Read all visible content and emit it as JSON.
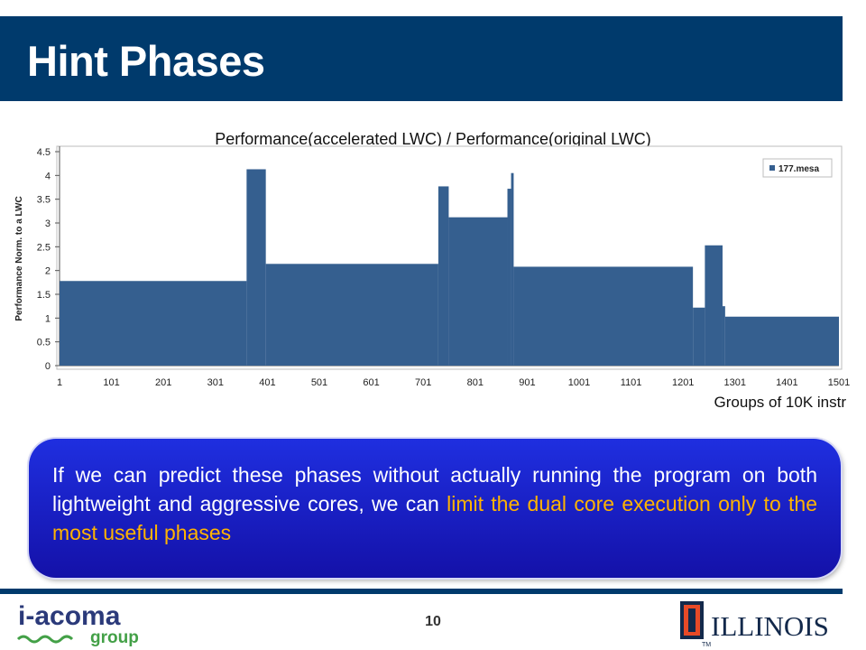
{
  "slide": {
    "title": "Hint Phases",
    "page_number": "10",
    "callout_text_plain": "If we can predict these phases without actually running the program on both lightweight and aggressive cores, we can",
    "callout_text_highlight": "limit the dual core execution only to the most useful phases",
    "logo_left": {
      "line1": "i-acoma",
      "line2": "group"
    },
    "logo_right": {
      "text": "ILLINOIS",
      "mark": "TM"
    }
  },
  "colors": {
    "title_bar": "#003a6c",
    "bars": "#355f8f",
    "callout": "#1a1fc8",
    "highlight": "#ffb300"
  },
  "chart_data": {
    "type": "bar",
    "title": "Performance(accelerated LWC) / Performance(original LWC)",
    "xlabel": "Groups of 10K instr",
    "ylabel": "Performance Norm. to a LWC",
    "ylim": [
      0,
      4.5
    ],
    "xlim": [
      1,
      1501
    ],
    "yticks": [
      "0",
      "0.5",
      "1",
      "1.5",
      "2",
      "2.5",
      "3",
      "3.5",
      "4",
      "4.5"
    ],
    "xticks": [
      "1",
      "101",
      "201",
      "301",
      "401",
      "501",
      "601",
      "701",
      "801",
      "901",
      "1001",
      "1101",
      "1201",
      "1301",
      "1401",
      "1501"
    ],
    "legend": [
      "177.mesa"
    ],
    "legend_position": "top-right",
    "series": [
      {
        "name": "177.mesa",
        "phases": [
          {
            "from": 1,
            "to": 361,
            "value": 1.78
          },
          {
            "from": 361,
            "to": 398,
            "value": 4.13
          },
          {
            "from": 398,
            "to": 730,
            "value": 2.14
          },
          {
            "from": 730,
            "to": 750,
            "value": 3.77
          },
          {
            "from": 750,
            "to": 863,
            "value": 3.12
          },
          {
            "from": 863,
            "to": 870,
            "value": 3.72
          },
          {
            "from": 870,
            "to": 875,
            "value": 4.05
          },
          {
            "from": 875,
            "to": 1220,
            "value": 2.08
          },
          {
            "from": 1220,
            "to": 1243,
            "value": 1.22
          },
          {
            "from": 1243,
            "to": 1277,
            "value": 2.53
          },
          {
            "from": 1277,
            "to": 1282,
            "value": 1.25
          },
          {
            "from": 1282,
            "to": 1501,
            "value": 1.03
          }
        ]
      }
    ]
  }
}
